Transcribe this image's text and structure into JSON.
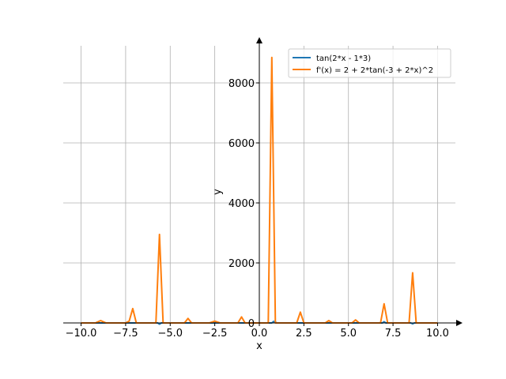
{
  "chart_data": {
    "type": "line",
    "xlabel": "x",
    "ylabel": "y",
    "xlim": [
      -11.0,
      11.0
    ],
    "ylim": [
      0,
      9000
    ],
    "xticks": [
      -10.0,
      -7.5,
      -5.0,
      -2.5,
      0.0,
      2.5,
      5.0,
      7.5,
      10.0
    ],
    "xtick_labels": [
      "−10.0",
      "−7.5",
      "−5.0",
      "−2.5",
      "0.0",
      "2.5",
      "5.0",
      "7.5",
      "10.0"
    ],
    "yticks": [
      0,
      2000,
      4000,
      6000,
      8000
    ],
    "ytick_labels": [
      "0",
      "2000",
      "4000",
      "6000",
      "8000"
    ],
    "grid": true,
    "legend_position": "top-right",
    "series": [
      {
        "name": "tan(2*x - 1*3)",
        "color": "#1f77b4",
        "x": [
          -10.0,
          -9.0,
          -8.0,
          -7.0,
          -5.7,
          -5.6,
          -5.5,
          -4.0,
          -2.5,
          -1.0,
          0.0,
          0.7,
          0.8,
          1.0,
          2.5,
          4.0,
          5.5,
          6.9,
          7.0,
          7.1,
          8.5,
          8.6,
          8.7,
          10.0
        ],
        "y": [
          0,
          0,
          0,
          0,
          0,
          -40,
          0,
          0,
          0,
          0,
          0,
          0,
          50,
          0,
          0,
          0,
          0,
          0,
          40,
          0,
          0,
          -30,
          0,
          0
        ]
      },
      {
        "name": "f'(x) = 2 + 2*tan(-3 + 2*x)^2",
        "color": "#ff7f0e",
        "x": [
          -10.0,
          -9.2,
          -8.9,
          -8.6,
          -7.5,
          -7.3,
          -7.1,
          -6.9,
          -6.0,
          -5.8,
          -5.6,
          -5.4,
          -4.2,
          -4.0,
          -3.8,
          -2.8,
          -2.5,
          -2.2,
          -1.2,
          -1.0,
          -0.8,
          0.3,
          0.5,
          0.7,
          0.9,
          2.1,
          2.3,
          2.5,
          3.7,
          3.9,
          4.1,
          5.2,
          5.4,
          5.6,
          6.6,
          6.8,
          7.0,
          7.2,
          8.2,
          8.4,
          8.6,
          8.8,
          9.6,
          10.0
        ],
        "y": [
          0,
          0,
          80,
          0,
          0,
          60,
          480,
          0,
          0,
          0,
          2950,
          0,
          0,
          150,
          0,
          0,
          60,
          0,
          0,
          200,
          0,
          0,
          0,
          8850,
          0,
          0,
          360,
          0,
          0,
          80,
          0,
          0,
          100,
          0,
          0,
          0,
          640,
          0,
          0,
          0,
          1670,
          0,
          0,
          0
        ]
      }
    ]
  }
}
